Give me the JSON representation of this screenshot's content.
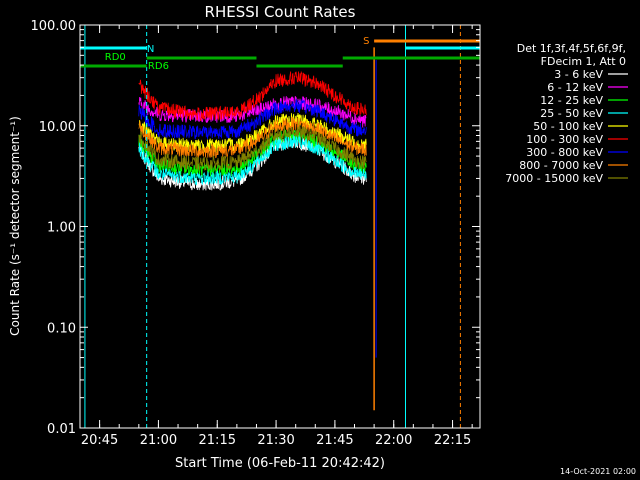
{
  "chart_data": {
    "type": "line",
    "title": "RHESSI Count Rates",
    "xlabel": "Start Time (06-Feb-11 20:42:42)",
    "ylabel": "Count Rate (s⁻¹ detector segment⁻¹)",
    "yscale": "log",
    "ylim": [
      0.01,
      100
    ],
    "xlim": [
      "20:40",
      "22:22"
    ],
    "x_ticks": [
      "20:45",
      "21:00",
      "21:15",
      "21:30",
      "21:45",
      "22:00",
      "22:15"
    ],
    "y_ticks": [
      "0.01",
      "0.10",
      "1.00",
      "10.00",
      "100.00"
    ],
    "legend_header": [
      "Det 1f,3f,4f,5f,6f,9f,",
      "FDecim 1, Att 0"
    ],
    "legend_position": "right",
    "series": [
      {
        "name": "3 - 6 keV",
        "color": "#ffffff",
        "x": [
          "20:55",
          "21:00",
          "21:10",
          "21:20",
          "21:25",
          "21:30",
          "21:35",
          "21:40",
          "21:45",
          "21:50",
          "21:53"
        ],
        "y": [
          6.0,
          3.0,
          2.6,
          2.8,
          4.0,
          6.5,
          7.0,
          6.0,
          4.5,
          3.2,
          3.0
        ]
      },
      {
        "name": "6 - 12 keV",
        "color": "#ff00ff",
        "x": [
          "20:55",
          "21:00",
          "21:10",
          "21:20",
          "21:25",
          "21:30",
          "21:35",
          "21:40",
          "21:45",
          "21:50",
          "21:53"
        ],
        "y": [
          17,
          13,
          12.5,
          12.5,
          14,
          16.5,
          17,
          16,
          14,
          12,
          11
        ]
      },
      {
        "name": "12 - 25 keV",
        "color": "#00ff00",
        "x": [
          "20:55",
          "21:00",
          "21:10",
          "21:20",
          "21:25",
          "21:30",
          "21:35",
          "21:40",
          "21:45",
          "21:50",
          "21:53"
        ],
        "y": [
          7.0,
          4.0,
          3.6,
          3.7,
          5.0,
          7.5,
          8.0,
          7.0,
          5.5,
          4.0,
          3.8
        ]
      },
      {
        "name": "25 - 50 keV",
        "color": "#00ffff",
        "x": [
          "20:55",
          "21:00",
          "21:10",
          "21:20",
          "21:25",
          "21:30",
          "21:35",
          "21:40",
          "21:45",
          "21:50",
          "21:53"
        ],
        "y": [
          6.0,
          3.3,
          3.0,
          3.1,
          4.3,
          6.5,
          7.0,
          6.0,
          4.5,
          3.4,
          3.2
        ]
      },
      {
        "name": "50 - 100 keV",
        "color": "#ffff00",
        "x": [
          "20:55",
          "21:00",
          "21:10",
          "21:20",
          "21:25",
          "21:30",
          "21:35",
          "21:40",
          "21:45",
          "21:50",
          "21:53"
        ],
        "y": [
          11,
          6.8,
          6.3,
          6.5,
          8.0,
          11,
          11.5,
          10.5,
          8.5,
          6.8,
          6.5
        ]
      },
      {
        "name": "100 - 300 keV",
        "color": "#ff0000",
        "x": [
          "20:55",
          "21:00",
          "21:10",
          "21:20",
          "21:25",
          "21:30",
          "21:35",
          "21:40",
          "21:45",
          "21:50",
          "21:53"
        ],
        "y": [
          26,
          15,
          13,
          13.5,
          18,
          28,
          30,
          27,
          20,
          15,
          14
        ]
      },
      {
        "name": "300 - 800 keV",
        "color": "#0000ff",
        "x": [
          "20:55",
          "21:00",
          "21:10",
          "21:20",
          "21:25",
          "21:30",
          "21:35",
          "21:40",
          "21:45",
          "21:50",
          "21:53"
        ],
        "y": [
          14,
          9.0,
          8.6,
          8.8,
          11,
          15,
          16,
          14.5,
          11.5,
          9.2,
          9.0
        ]
      },
      {
        "name": "800 - 7000 keV",
        "color": "#ff8000",
        "x": [
          "20:55",
          "21:00",
          "21:10",
          "21:20",
          "21:25",
          "21:30",
          "21:35",
          "21:40",
          "21:45",
          "21:50",
          "21:53"
        ],
        "y": [
          10,
          6.0,
          5.6,
          5.7,
          7.0,
          10,
          10.5,
          9.5,
          7.5,
          6.0,
          5.8
        ]
      },
      {
        "name": "7000 - 15000 keV",
        "color": "#808000",
        "x": [
          "20:55",
          "21:00",
          "21:10",
          "21:20",
          "21:25",
          "21:30",
          "21:35",
          "21:40",
          "21:45",
          "21:50",
          "21:53"
        ],
        "y": [
          8.0,
          4.6,
          4.2,
          4.3,
          5.6,
          8.2,
          8.8,
          7.8,
          6.0,
          4.6,
          4.3
        ]
      }
    ],
    "annotations": [
      {
        "label": "RD0",
        "color": "#00ff00"
      },
      {
        "label": "RD6",
        "color": "#00ff00"
      },
      {
        "label": "N",
        "color": "#00ffff"
      },
      {
        "label": "S",
        "color": "#ff8000"
      }
    ],
    "footer": "14-Oct-2021 02:00"
  }
}
